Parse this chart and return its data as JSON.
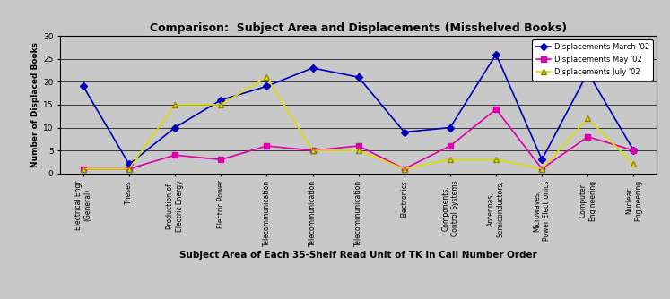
{
  "title": "Comparison:  Subject Area and Displacements (Misshelved Books)",
  "xlabel": "Subject Area of Each 35-Shelf Read Unit of TK in Call Number Order",
  "ylabel": "Number of Displaced Books",
  "categories": [
    "Electrical Engr\n(General)",
    "Theses",
    "Production of\nElectric Energy",
    "Electric Power",
    "Telecommunication",
    "Telecommunication",
    "Telecommunication",
    "Electronics",
    "Components,\nControl Systems",
    "Antennas,\nSemiconductors,",
    "Microwaves,\nPower Electronics",
    "Computer\nEngineering",
    "Nuclear\nEngineering"
  ],
  "march": [
    19,
    2,
    10,
    16,
    19,
    23,
    21,
    9,
    10,
    26,
    3,
    22,
    5
  ],
  "may": [
    1,
    1,
    4,
    3,
    6,
    5,
    6,
    1,
    6,
    14,
    1,
    8,
    5
  ],
  "july": [
    1,
    1,
    15,
    15,
    21,
    5,
    5,
    1,
    3,
    3,
    1,
    12,
    2
  ],
  "march_color": "#0000bb",
  "may_color": "#dd00aa",
  "july_color": "#dddd00",
  "march_label": "Displacements March '02",
  "may_label": "Displacements May '02",
  "july_label": "Displacements July '02",
  "ylim": [
    0,
    30
  ],
  "yticks": [
    0,
    5,
    10,
    15,
    20,
    25,
    30
  ],
  "fig_bg_color": "#c8c8c8",
  "plot_bg_color": "#c8c8c8"
}
